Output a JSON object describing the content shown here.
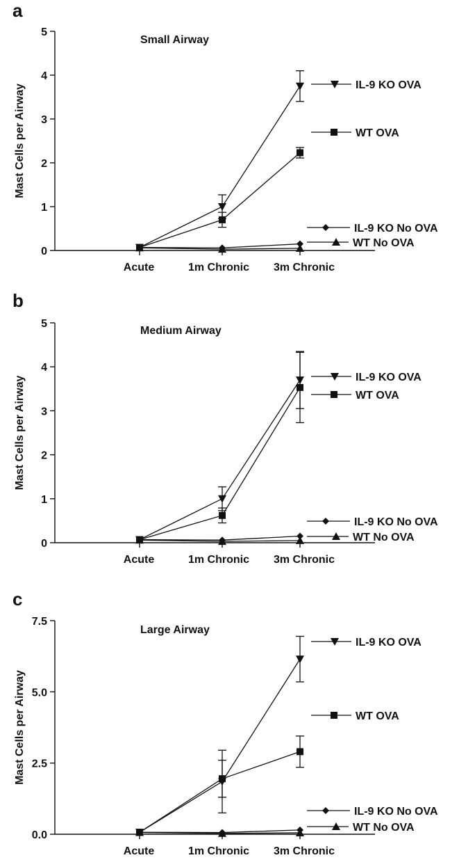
{
  "figure": {
    "panels": [
      {
        "letter": "a",
        "title": "Small Airway"
      },
      {
        "letter": "b",
        "title": "Medium Airway"
      },
      {
        "letter": "c",
        "title": "Large Airway"
      }
    ]
  },
  "chart_data": [
    {
      "type": "line",
      "panel": "a",
      "title": "Small Airway",
      "xlabel": "",
      "ylabel": "Mast Cells per Airway",
      "categories": [
        "Acute",
        "1m Chronic",
        "3m Chronic"
      ],
      "ylim": [
        0,
        5
      ],
      "yticks": [
        "0",
        "1",
        "2",
        "3",
        "4",
        "5"
      ],
      "grid": false,
      "legend": "right (labels beside line ends)",
      "series": [
        {
          "name": "IL-9 KO OVA",
          "marker": "triangle-down",
          "values": [
            0.07,
            1.0,
            3.75
          ],
          "errors": [
            0,
            0.27,
            0.35
          ]
        },
        {
          "name": "WT OVA",
          "marker": "square",
          "values": [
            0.07,
            0.7,
            2.23
          ],
          "errors": [
            0,
            0.17,
            0.12
          ]
        },
        {
          "name": "IL-9 KO No OVA",
          "marker": "diamond",
          "values": [
            0.07,
            0.06,
            0.15
          ],
          "errors": [
            0,
            0,
            0
          ]
        },
        {
          "name": "WT No OVA",
          "marker": "triangle-up",
          "values": [
            0.06,
            0.03,
            0.05
          ],
          "errors": [
            0,
            0,
            0
          ]
        }
      ]
    },
    {
      "type": "line",
      "panel": "b",
      "title": "Medium Airway",
      "xlabel": "",
      "ylabel": "Mast Cells per Airway",
      "categories": [
        "Acute",
        "1m Chronic",
        "3m Chronic"
      ],
      "ylim": [
        0,
        5
      ],
      "yticks": [
        "0",
        "1",
        "2",
        "3",
        "4",
        "5"
      ],
      "grid": false,
      "legend": "right (labels beside line ends)",
      "series": [
        {
          "name": "IL-9 KO OVA",
          "marker": "triangle-down",
          "values": [
            0.07,
            1.0,
            3.7
          ],
          "errors": [
            0,
            0.27,
            0.65
          ]
        },
        {
          "name": "WT OVA",
          "marker": "square",
          "values": [
            0.07,
            0.62,
            3.53
          ],
          "errors": [
            0,
            0.17,
            0.8
          ]
        },
        {
          "name": "IL-9 KO No OVA",
          "marker": "diamond",
          "values": [
            0.07,
            0.06,
            0.15
          ],
          "errors": [
            0,
            0,
            0
          ]
        },
        {
          "name": "WT No OVA",
          "marker": "triangle-up",
          "values": [
            0.06,
            0.03,
            0.05
          ],
          "errors": [
            0,
            0,
            0
          ]
        }
      ]
    },
    {
      "type": "line",
      "panel": "c",
      "title": "Large Airway",
      "xlabel": "",
      "ylabel": "Mast Cells per Airway",
      "categories": [
        "Acute",
        "1m Chronic",
        "3m Chronic"
      ],
      "ylim": [
        0,
        7.5
      ],
      "yticks": [
        "0.0",
        "2.5",
        "5.0",
        "7.5"
      ],
      "grid": false,
      "legend": "right (labels beside line ends)",
      "series": [
        {
          "name": "IL-9 KO OVA",
          "marker": "triangle-down",
          "values": [
            0.07,
            1.85,
            6.15
          ],
          "errors": [
            0,
            1.1,
            0.8
          ]
        },
        {
          "name": "WT OVA",
          "marker": "square",
          "values": [
            0.07,
            1.95,
            2.9
          ],
          "errors": [
            0,
            0.65,
            0.55
          ]
        },
        {
          "name": "IL-9 KO No OVA",
          "marker": "diamond",
          "values": [
            0.07,
            0.06,
            0.15
          ],
          "errors": [
            0,
            0,
            0
          ]
        },
        {
          "name": "WT No OVA",
          "marker": "triangle-up",
          "values": [
            0.06,
            0.03,
            0.05
          ],
          "errors": [
            0,
            0,
            0
          ]
        }
      ]
    }
  ]
}
